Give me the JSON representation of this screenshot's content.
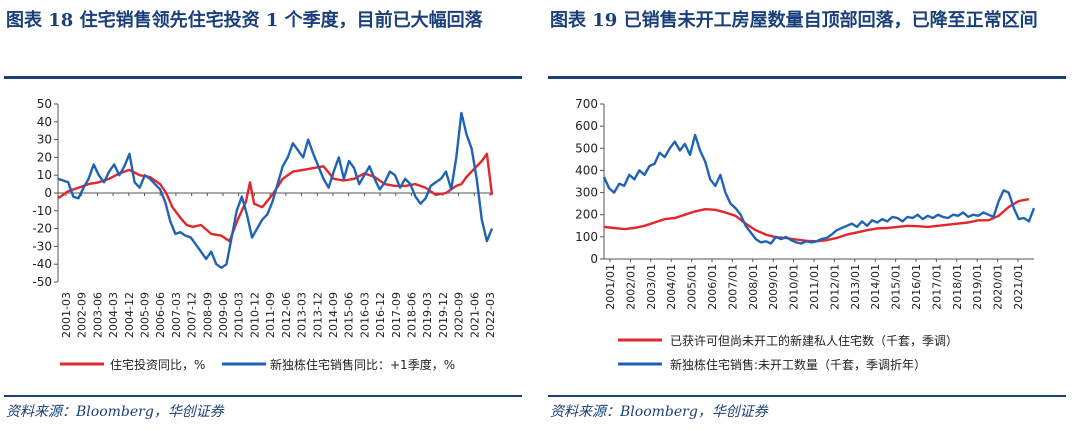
{
  "chart_data": [
    {
      "type": "line",
      "title": "图表 18   住宅销售领先住宅投资 1 个季度，目前已大幅回落",
      "source": "资料来源：Bloomberg，华创证券",
      "ylim": [
        -50,
        50
      ],
      "yticks": [
        -50,
        -40,
        -30,
        -20,
        -10,
        0,
        10,
        20,
        30,
        40,
        50
      ],
      "xrange": [
        2001.0,
        2022.25
      ],
      "xticks": [
        "2001-03",
        "2002-09",
        "2003-06",
        "2004-03",
        "2004-12",
        "2005-09",
        "2006-06",
        "2007-03",
        "2007-12",
        "2008-09",
        "2009-06",
        "2010-03",
        "2010-12",
        "2011-09",
        "2012-06",
        "2013-03",
        "2013-12",
        "2014-09",
        "2015-06",
        "2016-03",
        "2016-12",
        "2017-09",
        "2018-06",
        "2019-03",
        "2019-12",
        "2020-09",
        "2021-06",
        "2022-03"
      ],
      "series": [
        {
          "name": "住宅投资同比，%",
          "color": "#e3262b",
          "x": [
            2001.0,
            2001.5,
            2002.0,
            2002.5,
            2003.0,
            2003.5,
            2004.0,
            2004.5,
            2005.0,
            2005.5,
            2006.0,
            2006.3,
            2006.6,
            2007.0,
            2007.3,
            2007.6,
            2008.0,
            2008.5,
            2009.0,
            2009.4,
            2009.8,
            2010.2,
            2010.4,
            2010.6,
            2011.0,
            2011.5,
            2012.0,
            2012.5,
            2013.0,
            2013.5,
            2014.0,
            2014.5,
            2015.0,
            2015.5,
            2016.0,
            2016.5,
            2017.0,
            2017.5,
            2018.0,
            2018.5,
            2019.0,
            2019.5,
            2020.0,
            2020.25,
            2020.5,
            2020.75,
            2021.0,
            2021.25,
            2021.5,
            2021.75,
            2022.0,
            2022.25
          ],
          "y": [
            -3,
            1,
            3,
            5,
            6,
            8,
            11,
            13,
            10,
            9,
            5,
            0,
            -8,
            -14,
            -18,
            -19,
            -18,
            -23,
            -24,
            -27,
            -15,
            -5,
            6,
            -6,
            -8,
            -1,
            8,
            12,
            13,
            14,
            15,
            8,
            7,
            8,
            11,
            9,
            5,
            4,
            4,
            5,
            3,
            -1,
            0,
            2,
            4,
            5,
            9,
            12,
            15,
            18,
            22,
            -1
          ]
        },
        {
          "name": "新独栋住宅销售同比：+1季度，%",
          "color": "#1f63b5",
          "x": [
            2001.0,
            2001.25,
            2001.5,
            2001.75,
            2002.0,
            2002.25,
            2002.5,
            2002.75,
            2003.0,
            2003.25,
            2003.5,
            2003.75,
            2004.0,
            2004.25,
            2004.5,
            2004.75,
            2005.0,
            2005.25,
            2005.5,
            2005.75,
            2006.0,
            2006.25,
            2006.5,
            2006.75,
            2007.0,
            2007.25,
            2007.5,
            2007.75,
            2008.0,
            2008.25,
            2008.5,
            2008.75,
            2009.0,
            2009.25,
            2009.5,
            2009.75,
            2010.0,
            2010.25,
            2010.5,
            2010.75,
            2011.0,
            2011.25,
            2011.5,
            2011.75,
            2012.0,
            2012.25,
            2012.5,
            2012.75,
            2013.0,
            2013.25,
            2013.5,
            2013.75,
            2014.0,
            2014.25,
            2014.5,
            2014.75,
            2015.0,
            2015.25,
            2015.5,
            2015.75,
            2016.0,
            2016.25,
            2016.5,
            2016.75,
            2017.0,
            2017.25,
            2017.5,
            2017.75,
            2018.0,
            2018.25,
            2018.5,
            2018.75,
            2019.0,
            2019.25,
            2019.5,
            2019.75,
            2020.0,
            2020.25,
            2020.5,
            2020.75,
            2021.0,
            2021.25,
            2021.5,
            2021.75,
            2022.0,
            2022.25
          ],
          "y": [
            8,
            7,
            6,
            -2,
            -3,
            3,
            8,
            16,
            10,
            6,
            12,
            16,
            10,
            15,
            22,
            6,
            3,
            10,
            8,
            5,
            2,
            -5,
            -16,
            -23,
            -22,
            -24,
            -25,
            -29,
            -33,
            -37,
            -33,
            -40,
            -42,
            -40,
            -25,
            -10,
            -2,
            -12,
            -25,
            -20,
            -15,
            -12,
            -5,
            5,
            15,
            20,
            28,
            24,
            20,
            30,
            22,
            15,
            8,
            3,
            12,
            20,
            8,
            18,
            14,
            5,
            10,
            15,
            8,
            2,
            6,
            12,
            10,
            3,
            8,
            5,
            -2,
            -6,
            -3,
            4,
            6,
            8,
            12,
            2,
            20,
            45,
            33,
            25,
            8,
            -15,
            -27,
            -20
          ]
        }
      ]
    },
    {
      "type": "line",
      "title": "图表 19   已销售未开工房屋数量自顶部回落，已降至正常区间",
      "source": "资料来源：Bloomberg，华创证券",
      "ylim": [
        0,
        700
      ],
      "yticks": [
        0,
        100,
        200,
        300,
        400,
        500,
        600,
        700
      ],
      "xrange": [
        2001.0,
        2022.25
      ],
      "xticks": [
        "2001/01",
        "2002/01",
        "2003/01",
        "2004/01",
        "2005/01",
        "2006/01",
        "2007/01",
        "2008/01",
        "2009/01",
        "2010/01",
        "2011/01",
        "2012/01",
        "2013/01",
        "2014/01",
        "2015/01",
        "2016/01",
        "2017/01",
        "2018/01",
        "2019/01",
        "2020/01",
        "2021/01"
      ],
      "series": [
        {
          "name": "已获许可但尚未开工的新建私人住宅数（千套，季调）",
          "color": "#e3262b",
          "x": [
            2001.0,
            2001.5,
            2002.0,
            2002.5,
            2003.0,
            2003.5,
            2004.0,
            2004.5,
            2005.0,
            2005.5,
            2006.0,
            2006.5,
            2007.0,
            2007.5,
            2008.0,
            2008.5,
            2009.0,
            2009.5,
            2010.0,
            2010.5,
            2011.0,
            2011.5,
            2012.0,
            2012.5,
            2013.0,
            2013.5,
            2014.0,
            2014.5,
            2015.0,
            2015.5,
            2016.0,
            2016.5,
            2017.0,
            2017.5,
            2018.0,
            2018.5,
            2019.0,
            2019.5,
            2020.0,
            2020.5,
            2021.0,
            2021.5,
            2022.0
          ],
          "y": [
            145,
            140,
            135,
            140,
            150,
            165,
            180,
            185,
            200,
            215,
            225,
            222,
            210,
            195,
            160,
            130,
            110,
            98,
            95,
            88,
            82,
            80,
            85,
            95,
            110,
            120,
            130,
            138,
            140,
            145,
            150,
            148,
            145,
            150,
            155,
            160,
            165,
            175,
            175,
            195,
            235,
            262,
            270
          ]
        },
        {
          "name": "新独栋住宅销售:未开工数量（千套，季调折年）",
          "color": "#1f63b5",
          "x": [
            2001.0,
            2001.25,
            2001.5,
            2001.75,
            2002.0,
            2002.25,
            2002.5,
            2002.75,
            2003.0,
            2003.25,
            2003.5,
            2003.75,
            2004.0,
            2004.25,
            2004.5,
            2004.75,
            2005.0,
            2005.25,
            2005.5,
            2005.75,
            2006.0,
            2006.25,
            2006.5,
            2006.75,
            2007.0,
            2007.25,
            2007.5,
            2007.75,
            2008.0,
            2008.25,
            2008.5,
            2008.75,
            2009.0,
            2009.25,
            2009.5,
            2009.75,
            2010.0,
            2010.25,
            2010.5,
            2010.75,
            2011.0,
            2011.25,
            2011.5,
            2011.75,
            2012.0,
            2012.25,
            2012.5,
            2012.75,
            2013.0,
            2013.25,
            2013.5,
            2013.75,
            2014.0,
            2014.25,
            2014.5,
            2014.75,
            2015.0,
            2015.25,
            2015.5,
            2015.75,
            2016.0,
            2016.25,
            2016.5,
            2016.75,
            2017.0,
            2017.25,
            2017.5,
            2017.75,
            2018.0,
            2018.25,
            2018.5,
            2018.75,
            2019.0,
            2019.25,
            2019.5,
            2019.75,
            2020.0,
            2020.25,
            2020.5,
            2020.75,
            2021.0,
            2021.25,
            2021.5,
            2021.75,
            2022.0,
            2022.25
          ],
          "y": [
            370,
            320,
            300,
            340,
            330,
            380,
            360,
            400,
            380,
            420,
            430,
            480,
            460,
            500,
            530,
            490,
            520,
            470,
            560,
            490,
            440,
            360,
            330,
            380,
            300,
            250,
            230,
            200,
            150,
            120,
            90,
            75,
            80,
            70,
            100,
            90,
            100,
            85,
            75,
            70,
            80,
            75,
            80,
            90,
            95,
            110,
            130,
            140,
            150,
            160,
            145,
            170,
            150,
            175,
            165,
            180,
            170,
            190,
            185,
            170,
            190,
            185,
            200,
            180,
            195,
            185,
            200,
            190,
            185,
            200,
            195,
            210,
            190,
            200,
            195,
            210,
            200,
            190,
            260,
            310,
            300,
            230,
            180,
            185,
            170,
            230
          ]
        }
      ]
    }
  ]
}
